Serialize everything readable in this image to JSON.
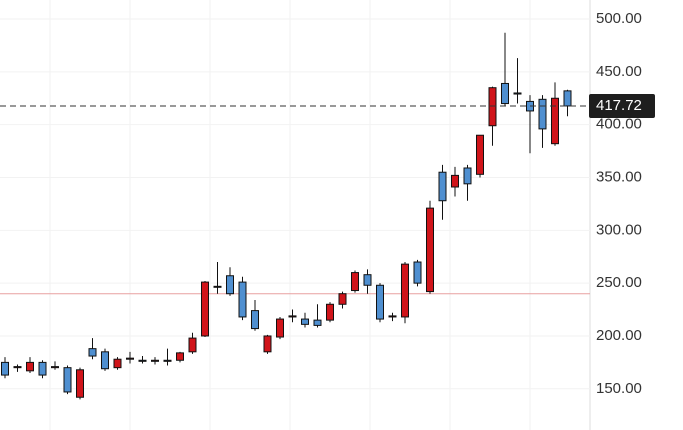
{
  "chart_data": {
    "type": "candlestick",
    "open": [
      175,
      170,
      167,
      175,
      170,
      170,
      142,
      188,
      185,
      170,
      178,
      177,
      176,
      177,
      177,
      185,
      200,
      247,
      257,
      251,
      224,
      185,
      199,
      218,
      216,
      215,
      215,
      230,
      243,
      258,
      248,
      218,
      218,
      270,
      242,
      355,
      341,
      359,
      353,
      399,
      439,
      430,
      422,
      424,
      382,
      432
    ],
    "high": [
      180,
      173,
      180,
      177,
      176,
      172,
      170,
      198,
      188,
      180,
      185,
      181,
      180,
      188,
      185,
      203,
      252,
      270,
      265,
      256,
      234,
      201,
      218,
      225,
      222,
      230,
      232,
      242,
      262,
      263,
      250,
      222,
      270,
      272,
      328,
      362,
      360,
      362,
      390,
      436,
      487,
      463,
      428,
      428,
      440,
      433
    ],
    "low": [
      160,
      166,
      165,
      160,
      168,
      145,
      140,
      178,
      167,
      168,
      174,
      174,
      173,
      172,
      175,
      183,
      199,
      240,
      238,
      215,
      205,
      183,
      197,
      213,
      208,
      208,
      213,
      226,
      241,
      240,
      213,
      214,
      212,
      247,
      240,
      310,
      332,
      328,
      350,
      380,
      418,
      420,
      373,
      378,
      380,
      408
    ],
    "close": [
      163,
      171,
      175,
      163,
      171,
      147,
      168,
      181,
      169,
      178,
      179,
      176,
      177,
      176,
      184,
      198,
      251,
      247,
      240,
      218,
      207,
      200,
      216,
      219,
      211,
      210,
      230,
      240,
      260,
      248,
      216,
      219,
      268,
      250,
      321,
      328,
      352,
      344,
      390,
      435,
      420,
      429,
      413,
      396,
      425,
      417.72
    ],
    "up_color": "#d0141a",
    "down_color": "#4f8fd0",
    "ylim": [
      111,
      518
    ],
    "yticks": [
      {
        "value": 150,
        "label": "150.00"
      },
      {
        "value": 200,
        "label": "200.00"
      },
      {
        "value": 250,
        "label": "250.00"
      },
      {
        "value": 300,
        "label": "300.00"
      },
      {
        "value": 350,
        "label": "350.00"
      },
      {
        "value": 400,
        "label": "400.00"
      },
      {
        "value": 450,
        "label": "450.00"
      },
      {
        "value": 500,
        "label": "500.00"
      }
    ],
    "grid": true,
    "last_price": 417.72,
    "reference_line": 240
  }
}
